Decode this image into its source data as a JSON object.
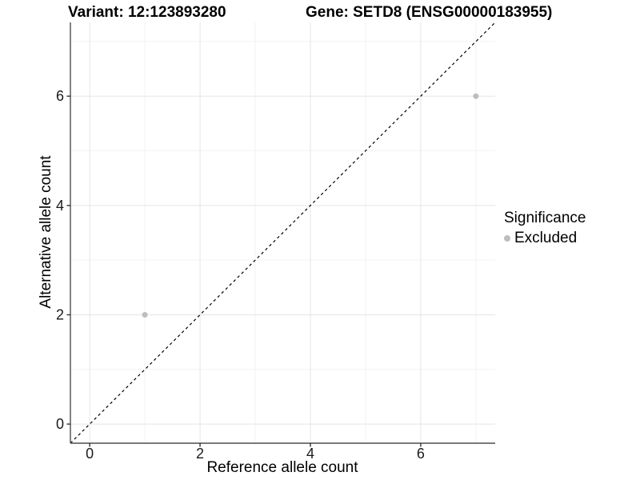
{
  "titles": {
    "variant": "Variant: 12:123893280",
    "gene": "Gene: SETD8 (ENSG00000183955)"
  },
  "axes": {
    "x_label": "Reference allele count",
    "y_label": "Alternative allele count"
  },
  "legend": {
    "title": "Significance",
    "position": "right",
    "items": [
      {
        "label": "Excluded",
        "color": "#bdbdbd"
      }
    ]
  },
  "chart_data": {
    "type": "scatter",
    "title": "Variant: 12:123893280    Gene: SETD8 (ENSG00000183955)",
    "xlabel": "Reference allele count",
    "ylabel": "Alternative allele count",
    "xlim": [
      -0.35,
      7.35
    ],
    "ylim": [
      -0.35,
      7.35
    ],
    "x_ticks": [
      0,
      2,
      4,
      6
    ],
    "y_ticks": [
      0,
      2,
      4,
      6
    ],
    "x_minor_gridlines": [
      1,
      3,
      5,
      7
    ],
    "y_minor_gridlines": [
      1,
      3,
      5,
      7
    ],
    "grid": true,
    "legend_position": "right",
    "series": [
      {
        "name": "Excluded",
        "color": "#bdbdbd",
        "points": [
          {
            "x": 1,
            "y": 2
          },
          {
            "x": 7,
            "y": 6
          }
        ]
      }
    ],
    "identity_line": {
      "type": "dashed",
      "equation": "y = x",
      "from": [
        -0.35,
        -0.35
      ],
      "to": [
        7.35,
        7.35
      ],
      "color": "#000000"
    },
    "style": {
      "point_color": "#bdbdbd",
      "point_radius": 3.5,
      "major_grid_color": "#e5e5e5",
      "minor_grid_color": "#f2f2f2",
      "axis_line_color": "#4d4d4d",
      "tick_color": "#333333",
      "tick_label_color": "#1a1a1a",
      "background": "#ffffff"
    }
  }
}
